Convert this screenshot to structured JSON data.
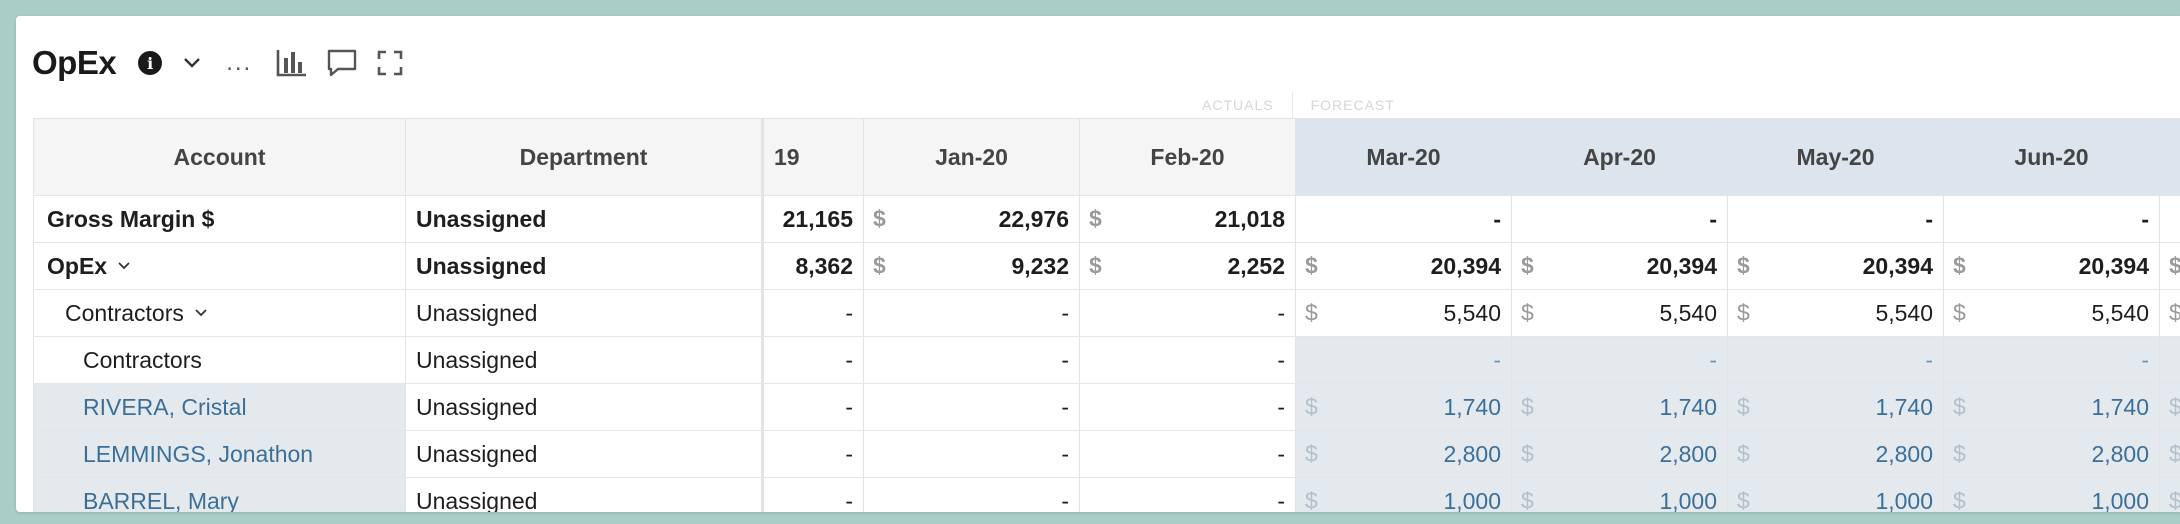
{
  "header": {
    "title": "OpEx",
    "info_glyph": "i",
    "more_label": "...",
    "icons": [
      "info-icon",
      "chevron-down-icon",
      "more-icon",
      "bar-chart-icon",
      "comment-icon",
      "expand-icon"
    ]
  },
  "segments": {
    "actuals": "ACTUALS",
    "forecast": "FORECAST"
  },
  "columns": {
    "account": "Account",
    "department": "Department",
    "months": [
      "19",
      "Jan-20",
      "Feb-20",
      "Mar-20",
      "Apr-20",
      "May-20",
      "Jun-20"
    ]
  },
  "currency": "$",
  "rows": [
    {
      "account": "Gross Margin $",
      "department": "Unassigned",
      "values": [
        "21,165",
        "22,976",
        "21,018",
        "-",
        "-",
        "-",
        "-"
      ]
    },
    {
      "account": "OpEx",
      "department": "Unassigned",
      "values": [
        "8,362",
        "9,232",
        "2,252",
        "20,394",
        "20,394",
        "20,394",
        "20,394"
      ]
    },
    {
      "account": "Contractors",
      "department": "Unassigned",
      "values": [
        "-",
        "-",
        "-",
        "5,540",
        "5,540",
        "5,540",
        "5,540"
      ]
    },
    {
      "account": "Contractors",
      "department": "Unassigned",
      "values": [
        "-",
        "-",
        "-",
        "-",
        "-",
        "-",
        "-"
      ]
    },
    {
      "account": "RIVERA, Cristal",
      "department": "Unassigned",
      "values": [
        "-",
        "-",
        "-",
        "1,740",
        "1,740",
        "1,740",
        "1,740"
      ]
    },
    {
      "account": "LEMMINGS, Jonathon",
      "department": "Unassigned",
      "values": [
        "-",
        "-",
        "-",
        "2,800",
        "2,800",
        "2,800",
        "2,800"
      ]
    },
    {
      "account": "BARREL, Mary",
      "department": "Unassigned",
      "values": [
        "-",
        "-",
        "-",
        "1,000",
        "1,000",
        "1,000",
        "1,000"
      ]
    }
  ],
  "colors": {
    "background": "#a8cec6",
    "forecast_header": "#dce5ed",
    "link": "#3c6f98"
  }
}
